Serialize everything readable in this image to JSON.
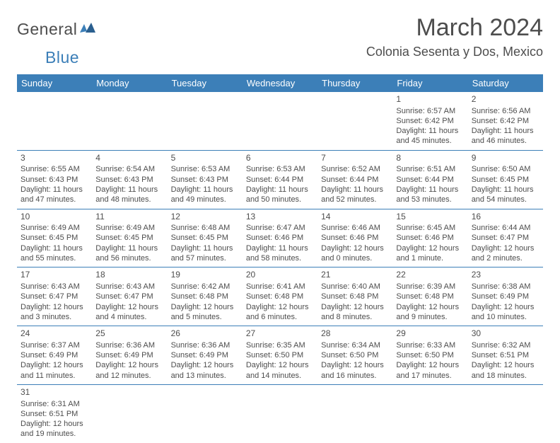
{
  "logo": {
    "part1": "General",
    "part2": "Blue"
  },
  "title": "March 2024",
  "location": "Colonia Sesenta y Dos, Mexico",
  "colors": {
    "header_bg": "#3c7fb8",
    "header_text": "#ffffff",
    "body_text": "#4d4d4d",
    "border": "#3c7fb8",
    "page_bg": "#ffffff"
  },
  "weekdays": [
    "Sunday",
    "Monday",
    "Tuesday",
    "Wednesday",
    "Thursday",
    "Friday",
    "Saturday"
  ],
  "weeks": [
    [
      null,
      null,
      null,
      null,
      null,
      {
        "n": "1",
        "sr": "Sunrise: 6:57 AM",
        "ss": "Sunset: 6:42 PM",
        "d1": "Daylight: 11 hours",
        "d2": "and 45 minutes."
      },
      {
        "n": "2",
        "sr": "Sunrise: 6:56 AM",
        "ss": "Sunset: 6:42 PM",
        "d1": "Daylight: 11 hours",
        "d2": "and 46 minutes."
      }
    ],
    [
      {
        "n": "3",
        "sr": "Sunrise: 6:55 AM",
        "ss": "Sunset: 6:43 PM",
        "d1": "Daylight: 11 hours",
        "d2": "and 47 minutes."
      },
      {
        "n": "4",
        "sr": "Sunrise: 6:54 AM",
        "ss": "Sunset: 6:43 PM",
        "d1": "Daylight: 11 hours",
        "d2": "and 48 minutes."
      },
      {
        "n": "5",
        "sr": "Sunrise: 6:53 AM",
        "ss": "Sunset: 6:43 PM",
        "d1": "Daylight: 11 hours",
        "d2": "and 49 minutes."
      },
      {
        "n": "6",
        "sr": "Sunrise: 6:53 AM",
        "ss": "Sunset: 6:44 PM",
        "d1": "Daylight: 11 hours",
        "d2": "and 50 minutes."
      },
      {
        "n": "7",
        "sr": "Sunrise: 6:52 AM",
        "ss": "Sunset: 6:44 PM",
        "d1": "Daylight: 11 hours",
        "d2": "and 52 minutes."
      },
      {
        "n": "8",
        "sr": "Sunrise: 6:51 AM",
        "ss": "Sunset: 6:44 PM",
        "d1": "Daylight: 11 hours",
        "d2": "and 53 minutes."
      },
      {
        "n": "9",
        "sr": "Sunrise: 6:50 AM",
        "ss": "Sunset: 6:45 PM",
        "d1": "Daylight: 11 hours",
        "d2": "and 54 minutes."
      }
    ],
    [
      {
        "n": "10",
        "sr": "Sunrise: 6:49 AM",
        "ss": "Sunset: 6:45 PM",
        "d1": "Daylight: 11 hours",
        "d2": "and 55 minutes."
      },
      {
        "n": "11",
        "sr": "Sunrise: 6:49 AM",
        "ss": "Sunset: 6:45 PM",
        "d1": "Daylight: 11 hours",
        "d2": "and 56 minutes."
      },
      {
        "n": "12",
        "sr": "Sunrise: 6:48 AM",
        "ss": "Sunset: 6:45 PM",
        "d1": "Daylight: 11 hours",
        "d2": "and 57 minutes."
      },
      {
        "n": "13",
        "sr": "Sunrise: 6:47 AM",
        "ss": "Sunset: 6:46 PM",
        "d1": "Daylight: 11 hours",
        "d2": "and 58 minutes."
      },
      {
        "n": "14",
        "sr": "Sunrise: 6:46 AM",
        "ss": "Sunset: 6:46 PM",
        "d1": "Daylight: 12 hours",
        "d2": "and 0 minutes."
      },
      {
        "n": "15",
        "sr": "Sunrise: 6:45 AM",
        "ss": "Sunset: 6:46 PM",
        "d1": "Daylight: 12 hours",
        "d2": "and 1 minute."
      },
      {
        "n": "16",
        "sr": "Sunrise: 6:44 AM",
        "ss": "Sunset: 6:47 PM",
        "d1": "Daylight: 12 hours",
        "d2": "and 2 minutes."
      }
    ],
    [
      {
        "n": "17",
        "sr": "Sunrise: 6:43 AM",
        "ss": "Sunset: 6:47 PM",
        "d1": "Daylight: 12 hours",
        "d2": "and 3 minutes."
      },
      {
        "n": "18",
        "sr": "Sunrise: 6:43 AM",
        "ss": "Sunset: 6:47 PM",
        "d1": "Daylight: 12 hours",
        "d2": "and 4 minutes."
      },
      {
        "n": "19",
        "sr": "Sunrise: 6:42 AM",
        "ss": "Sunset: 6:48 PM",
        "d1": "Daylight: 12 hours",
        "d2": "and 5 minutes."
      },
      {
        "n": "20",
        "sr": "Sunrise: 6:41 AM",
        "ss": "Sunset: 6:48 PM",
        "d1": "Daylight: 12 hours",
        "d2": "and 6 minutes."
      },
      {
        "n": "21",
        "sr": "Sunrise: 6:40 AM",
        "ss": "Sunset: 6:48 PM",
        "d1": "Daylight: 12 hours",
        "d2": "and 8 minutes."
      },
      {
        "n": "22",
        "sr": "Sunrise: 6:39 AM",
        "ss": "Sunset: 6:48 PM",
        "d1": "Daylight: 12 hours",
        "d2": "and 9 minutes."
      },
      {
        "n": "23",
        "sr": "Sunrise: 6:38 AM",
        "ss": "Sunset: 6:49 PM",
        "d1": "Daylight: 12 hours",
        "d2": "and 10 minutes."
      }
    ],
    [
      {
        "n": "24",
        "sr": "Sunrise: 6:37 AM",
        "ss": "Sunset: 6:49 PM",
        "d1": "Daylight: 12 hours",
        "d2": "and 11 minutes."
      },
      {
        "n": "25",
        "sr": "Sunrise: 6:36 AM",
        "ss": "Sunset: 6:49 PM",
        "d1": "Daylight: 12 hours",
        "d2": "and 12 minutes."
      },
      {
        "n": "26",
        "sr": "Sunrise: 6:36 AM",
        "ss": "Sunset: 6:49 PM",
        "d1": "Daylight: 12 hours",
        "d2": "and 13 minutes."
      },
      {
        "n": "27",
        "sr": "Sunrise: 6:35 AM",
        "ss": "Sunset: 6:50 PM",
        "d1": "Daylight: 12 hours",
        "d2": "and 14 minutes."
      },
      {
        "n": "28",
        "sr": "Sunrise: 6:34 AM",
        "ss": "Sunset: 6:50 PM",
        "d1": "Daylight: 12 hours",
        "d2": "and 16 minutes."
      },
      {
        "n": "29",
        "sr": "Sunrise: 6:33 AM",
        "ss": "Sunset: 6:50 PM",
        "d1": "Daylight: 12 hours",
        "d2": "and 17 minutes."
      },
      {
        "n": "30",
        "sr": "Sunrise: 6:32 AM",
        "ss": "Sunset: 6:51 PM",
        "d1": "Daylight: 12 hours",
        "d2": "and 18 minutes."
      }
    ],
    [
      {
        "n": "31",
        "sr": "Sunrise: 6:31 AM",
        "ss": "Sunset: 6:51 PM",
        "d1": "Daylight: 12 hours",
        "d2": "and 19 minutes."
      },
      null,
      null,
      null,
      null,
      null,
      null
    ]
  ]
}
